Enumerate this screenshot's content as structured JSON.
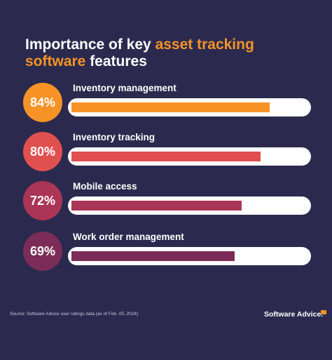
{
  "title": {
    "prefix": "Importance of key ",
    "highlight": "asset tracking software",
    "suffix": " features"
  },
  "chart_data": {
    "type": "bar",
    "orientation": "horizontal",
    "categories": [
      "Inventory management",
      "Inventory tracking",
      "Mobile access",
      "Work order management"
    ],
    "values": [
      84,
      80,
      72,
      69
    ],
    "value_labels": [
      "84%",
      "80%",
      "72%",
      "69%"
    ],
    "unit": "%",
    "xlim": [
      0,
      100
    ],
    "grid": false,
    "legend": "none"
  },
  "colors": {
    "background": "#2b2a4e",
    "accent": "#f79326",
    "track": "#ffffff",
    "series": [
      "#f79326",
      "#e0504f",
      "#ab3557",
      "#7b2d57"
    ]
  },
  "footer": {
    "source": "Source: Software Advice user ratings data (as of Feb. 05, 2024)",
    "brand": "Software Advice."
  }
}
